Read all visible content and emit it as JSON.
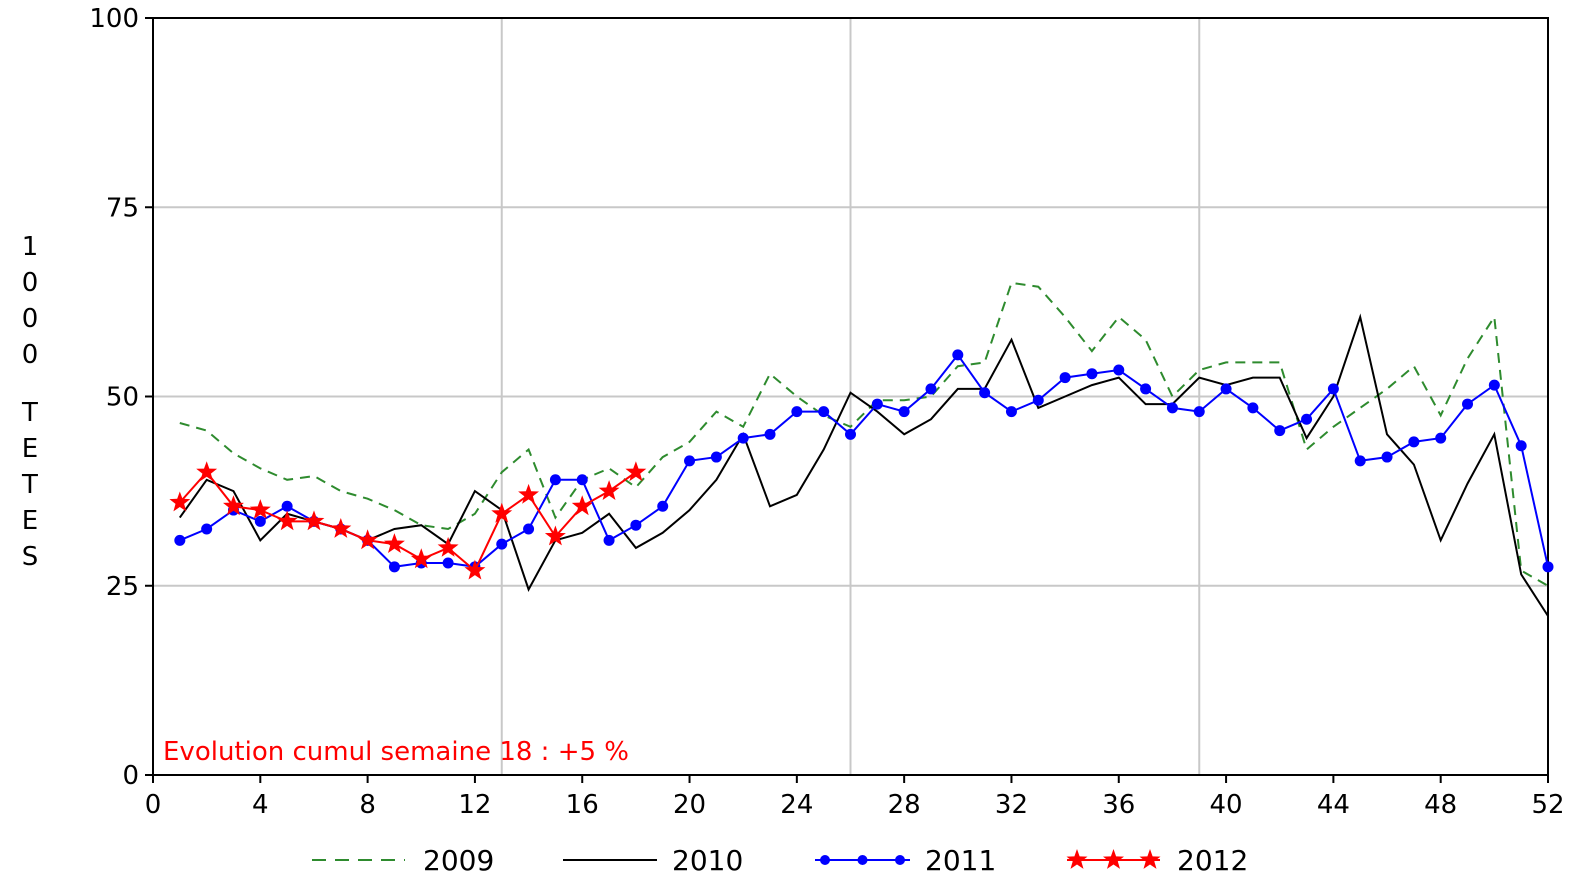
{
  "chart_data": {
    "type": "line",
    "title": "",
    "xlabel": "",
    "ylabel": "1000 TETES",
    "xlim": [
      0,
      52
    ],
    "ylim": [
      0,
      100
    ],
    "x_ticks": [
      "0",
      "4",
      "8",
      "12",
      "16",
      "20",
      "24",
      "28",
      "32",
      "36",
      "40",
      "44",
      "48",
      "52"
    ],
    "x_tick_values": [
      0,
      4,
      8,
      12,
      16,
      20,
      24,
      28,
      32,
      36,
      40,
      44,
      48,
      52
    ],
    "y_ticks": [
      "0",
      "25",
      "50",
      "75",
      "100"
    ],
    "y_tick_values": [
      0,
      25,
      50,
      75,
      100
    ],
    "grid": true,
    "grid_x": [
      13,
      26,
      39
    ],
    "grid_y": [
      25,
      50,
      75
    ],
    "legend_position": "bottom",
    "annotation": "Evolution cumul semaine 18 : +5 %",
    "colors": {
      "2009": "#2e8b2e",
      "2010": "#000000",
      "2011": "#0000ff",
      "2012": "#ff0000",
      "grid": "#c8c8c8",
      "annotation": "#ff0000"
    },
    "series": [
      {
        "name": "2009",
        "style": "dashed",
        "marker": "none",
        "x": [
          1,
          2,
          3,
          4,
          5,
          6,
          7,
          8,
          9,
          10,
          11,
          12,
          13,
          14,
          15,
          16,
          17,
          18,
          19,
          20,
          21,
          22,
          23,
          24,
          25,
          26,
          27,
          28,
          29,
          30,
          31,
          32,
          33,
          34,
          35,
          36,
          37,
          38,
          39,
          40,
          41,
          42,
          43,
          44,
          45,
          46,
          47,
          48,
          49,
          50,
          51,
          52
        ],
        "values": [
          46.5,
          45.5,
          42.5,
          40.5,
          39,
          39.5,
          37.5,
          36.5,
          35,
          33,
          32.5,
          34.5,
          40,
          43,
          34,
          39,
          40.5,
          38,
          42,
          44,
          48,
          46,
          53,
          50,
          47.5,
          46,
          49.5,
          49.5,
          50,
          54,
          54.5,
          65,
          64.5,
          60.5,
          56,
          60.5,
          57.5,
          50,
          53.5,
          54.5,
          54.5,
          54.5,
          43,
          46,
          48.5,
          51,
          54,
          47.5,
          55,
          60.5,
          27,
          25
        ]
      },
      {
        "name": "2010",
        "style": "solid",
        "marker": "none",
        "x": [
          1,
          2,
          3,
          4,
          5,
          6,
          7,
          8,
          9,
          10,
          11,
          12,
          13,
          14,
          15,
          16,
          17,
          18,
          19,
          20,
          21,
          22,
          23,
          24,
          25,
          26,
          27,
          28,
          29,
          30,
          31,
          32,
          33,
          34,
          35,
          36,
          37,
          38,
          39,
          40,
          41,
          42,
          43,
          44,
          45,
          46,
          47,
          48,
          49,
          50,
          51,
          52
        ],
        "values": [
          34,
          39,
          37.5,
          31,
          34.5,
          33.5,
          32.5,
          31,
          32.5,
          33,
          30.5,
          37.5,
          35,
          24.5,
          31,
          32,
          34.5,
          30,
          32,
          35,
          39,
          45,
          35.5,
          37,
          43,
          50.5,
          48,
          45,
          47,
          51,
          51,
          57.5,
          48.5,
          50,
          51.5,
          52.5,
          49,
          49,
          52.5,
          51.5,
          52.5,
          52.5,
          44.5,
          50,
          60.5,
          45,
          41,
          31,
          38.5,
          45,
          26.5,
          21
        ]
      },
      {
        "name": "2011",
        "style": "solid",
        "marker": "circle",
        "x": [
          1,
          2,
          3,
          4,
          5,
          6,
          7,
          8,
          9,
          10,
          11,
          12,
          13,
          14,
          15,
          16,
          17,
          18,
          19,
          20,
          21,
          22,
          23,
          24,
          25,
          26,
          27,
          28,
          29,
          30,
          31,
          32,
          33,
          34,
          35,
          36,
          37,
          38,
          39,
          40,
          41,
          42,
          43,
          44,
          45,
          46,
          47,
          48,
          49,
          50,
          51,
          52
        ],
        "values": [
          31,
          32.5,
          35,
          33.5,
          35.5,
          33.5,
          32.5,
          31,
          27.5,
          28,
          28,
          27.5,
          30.5,
          32.5,
          39,
          39,
          31,
          33,
          35.5,
          41.5,
          42,
          44.5,
          45,
          48,
          48,
          45,
          49,
          48,
          51,
          55.5,
          50.5,
          48,
          49.5,
          52.5,
          53,
          53.5,
          51,
          48.5,
          48,
          51,
          48.5,
          45.5,
          47,
          51,
          41.5,
          42,
          44,
          44.5,
          49,
          51.5,
          43.5,
          27.5
        ]
      },
      {
        "name": "2012",
        "style": "solid",
        "marker": "star",
        "x": [
          1,
          2,
          3,
          4,
          5,
          6,
          7,
          8,
          9,
          10,
          11,
          12,
          13,
          14,
          15,
          16,
          17,
          18
        ],
        "values": [
          36,
          40,
          35.5,
          35,
          33.5,
          33.5,
          32.5,
          31,
          30.5,
          28.5,
          30,
          27,
          34.5,
          37,
          31.5,
          35.5,
          37.5,
          40
        ]
      }
    ]
  }
}
